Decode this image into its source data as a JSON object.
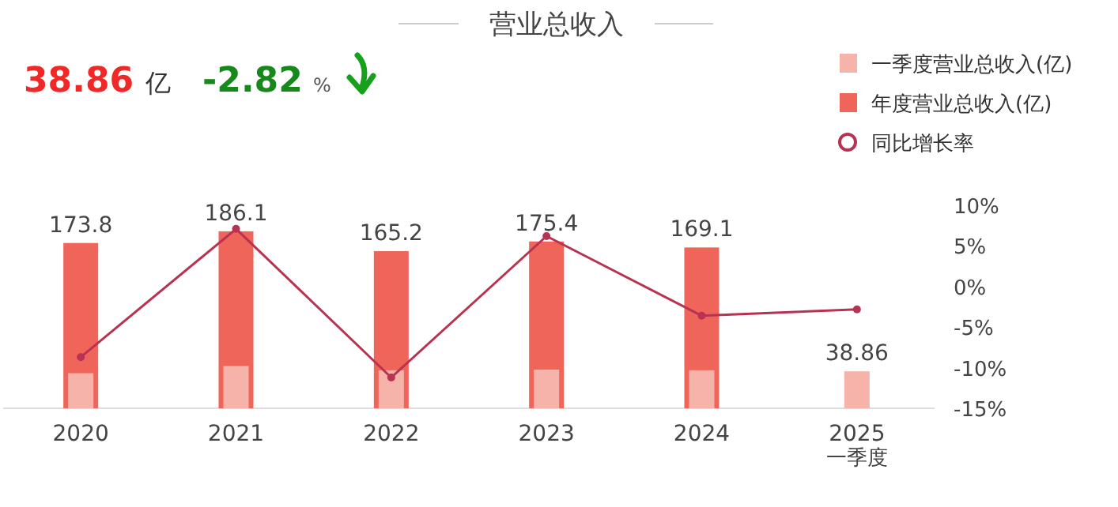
{
  "chart_data": {
    "type": "bar",
    "title": "营业总收入",
    "annotations": [
      "38.86",
      "亿",
      "-2.82",
      "%"
    ],
    "categories": [
      "2020",
      "2021",
      "2022",
      "2023",
      "2024",
      "2025 一季度"
    ],
    "series": [
      {
        "name": "一季度营业总收入(亿)",
        "color": "#f6b3aa",
        "values": [
          36.9,
          44.5,
          40.0,
          40.7,
          40.0,
          38.86
        ],
        "value_labels": [
          null,
          null,
          null,
          null,
          null,
          "38.86"
        ]
      },
      {
        "name": "年度营业总收入(亿)",
        "color": "#ef6559",
        "values": [
          173.8,
          186.1,
          165.2,
          175.4,
          169.1,
          null
        ],
        "value_labels": [
          "173.8",
          "186.1",
          "165.2",
          "175.4",
          "169.1",
          null
        ]
      },
      {
        "name": "同比增长率",
        "type": "line",
        "axis": "y2",
        "color": "#b83252",
        "marker": "circle",
        "values": [
          -8.7,
          7.1,
          -11.2,
          6.2,
          -3.6,
          -2.82
        ]
      }
    ],
    "y2lim": [
      -15,
      10
    ],
    "y2ticks": [
      {
        "value": 10,
        "label": "10%"
      },
      {
        "value": 5,
        "label": "5%"
      },
      {
        "value": 0,
        "label": "0%"
      },
      {
        "value": -5,
        "label": "-5%"
      },
      {
        "value": -10,
        "label": "-10%"
      },
      {
        "value": -15,
        "label": "-15%"
      }
    ],
    "legend": "top right"
  }
}
